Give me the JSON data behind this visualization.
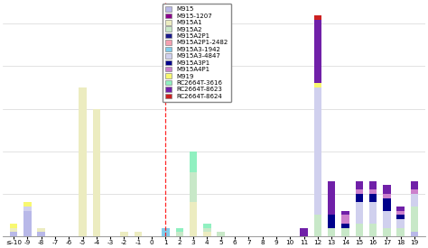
{
  "x_labels": [
    "≤-10",
    "-9",
    "-8",
    "-7",
    "-6",
    "-5",
    "-4",
    "-3",
    "-2",
    "-1",
    "0",
    "1",
    "2",
    "3",
    "4",
    "5",
    "6",
    "7",
    "8",
    "9",
    "10",
    "11",
    "12",
    "13",
    "14",
    "15",
    "16",
    "17",
    "18",
    "19"
  ],
  "x_values": [
    -10,
    -9,
    -8,
    -7,
    -6,
    -5,
    -4,
    -3,
    -2,
    -1,
    0,
    1,
    2,
    3,
    4,
    5,
    6,
    7,
    8,
    9,
    10,
    11,
    12,
    13,
    14,
    15,
    16,
    17,
    18,
    19
  ],
  "series": {
    "M915": [
      1,
      6,
      1,
      0,
      0,
      0,
      0,
      0,
      0,
      0,
      0,
      0,
      0,
      0,
      0,
      0,
      0,
      0,
      0,
      0,
      0,
      0,
      0,
      0,
      0,
      0,
      0,
      0,
      0,
      1
    ],
    "M915-1207": [
      0,
      0,
      0,
      0,
      0,
      0,
      0,
      0,
      0,
      0,
      0,
      0,
      0,
      0,
      0,
      0,
      0,
      0,
      0,
      0,
      0,
      0,
      0,
      0,
      0,
      0,
      0,
      0,
      0,
      0
    ],
    "M915A1": [
      1,
      0,
      1,
      0,
      0,
      35,
      30,
      0,
      1,
      1,
      0,
      0,
      0,
      8,
      1,
      0,
      0,
      0,
      0,
      0,
      0,
      0,
      0,
      0,
      0,
      0,
      0,
      0,
      0,
      0
    ],
    "M915A2": [
      0,
      0,
      0,
      0,
      0,
      0,
      0,
      0,
      0,
      0,
      0,
      0,
      1,
      7,
      1,
      1,
      0,
      0,
      0,
      0,
      0,
      0,
      5,
      2,
      2,
      3,
      3,
      2,
      2,
      6
    ],
    "M915A2P1": [
      0,
      0,
      0,
      0,
      0,
      0,
      0,
      0,
      0,
      0,
      0,
      0,
      0,
      0,
      0,
      0,
      0,
      0,
      0,
      0,
      0,
      0,
      0,
      0,
      0,
      0,
      0,
      0,
      0,
      0
    ],
    "M915A2P1-2482": [
      0,
      0,
      0,
      0,
      0,
      0,
      0,
      0,
      0,
      0,
      0,
      0,
      0,
      0,
      0,
      0,
      0,
      0,
      0,
      0,
      0,
      0,
      0,
      0,
      0,
      0,
      0,
      0,
      0,
      0
    ],
    "M915A3-1942": [
      0,
      0,
      0,
      0,
      0,
      0,
      0,
      0,
      0,
      0,
      0,
      2,
      0,
      0,
      0,
      0,
      0,
      0,
      0,
      0,
      0,
      0,
      0,
      0,
      0,
      0,
      0,
      0,
      0,
      0
    ],
    "M915A3-4847": [
      0,
      1,
      0,
      0,
      0,
      0,
      0,
      0,
      0,
      0,
      0,
      0,
      0,
      0,
      0,
      0,
      0,
      0,
      0,
      0,
      0,
      0,
      30,
      0,
      0,
      5,
      5,
      4,
      2,
      3
    ],
    "M915A3P1": [
      0,
      0,
      0,
      0,
      0,
      0,
      0,
      0,
      0,
      0,
      0,
      0,
      0,
      0,
      0,
      0,
      0,
      0,
      0,
      0,
      0,
      0,
      0,
      3,
      1,
      2,
      2,
      3,
      1,
      0
    ],
    "M915A4P1": [
      0,
      0,
      0,
      0,
      0,
      0,
      0,
      0,
      0,
      0,
      0,
      0,
      0,
      0,
      0,
      0,
      0,
      0,
      0,
      0,
      0,
      0,
      0,
      0,
      2,
      1,
      1,
      1,
      1,
      1
    ],
    "M919": [
      1,
      1,
      0,
      0,
      0,
      0,
      0,
      0,
      0,
      0,
      0,
      0,
      0,
      0,
      0,
      0,
      0,
      0,
      0,
      0,
      0,
      0,
      1,
      0,
      0,
      0,
      0,
      0,
      0,
      0
    ],
    "RC2664T-3616": [
      0,
      0,
      0,
      0,
      0,
      0,
      0,
      0,
      0,
      0,
      0,
      0,
      1,
      5,
      1,
      0,
      0,
      0,
      0,
      0,
      0,
      0,
      0,
      0,
      0,
      0,
      0,
      0,
      0,
      0
    ],
    "RC2664T-8623": [
      0,
      0,
      0,
      0,
      0,
      0,
      0,
      0,
      0,
      0,
      0,
      0,
      0,
      0,
      0,
      0,
      0,
      0,
      0,
      0,
      0,
      2,
      15,
      8,
      1,
      2,
      2,
      2,
      1,
      2
    ],
    "RC2664T-8624": [
      0,
      0,
      0,
      0,
      0,
      0,
      0,
      0,
      0,
      0,
      0,
      0,
      0,
      0,
      0,
      0,
      0,
      0,
      0,
      0,
      0,
      0,
      1,
      0,
      0,
      0,
      0,
      0,
      0,
      0
    ]
  },
  "colors": {
    "M915": "#b8b8e8",
    "M915-1207": "#8b008b",
    "M915A1": "#ececc0",
    "M915A2": "#c8e8c8",
    "M915A2P1": "#1a1a8c",
    "M915A2P1-2482": "#f4a0b0",
    "M915A3-1942": "#80ccec",
    "M915A3-4847": "#d0d0ee",
    "M915A3P1": "#00008b",
    "M915A4P1": "#cc80cc",
    "M919": "#f8f870",
    "RC2664T-3616": "#90f0c0",
    "RC2664T-8623": "#7020a8",
    "RC2664T-8624": "#cc2020"
  },
  "vline_x": 1,
  "ylim_max": 55,
  "background_color": "#ffffff"
}
